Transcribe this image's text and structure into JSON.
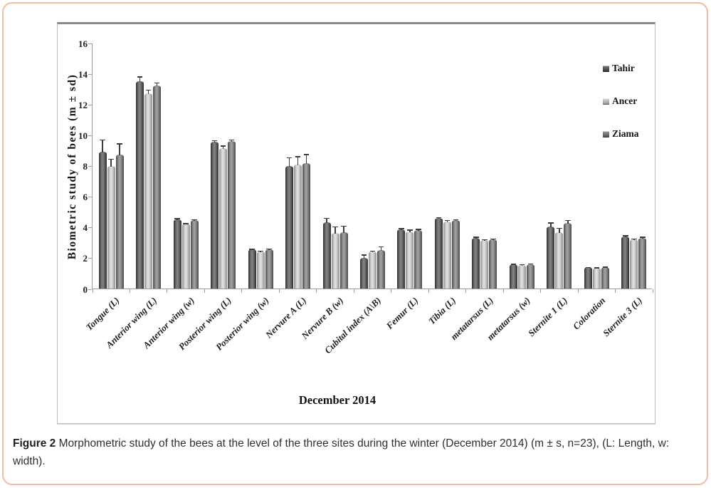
{
  "figure": {
    "caption_label": "Figure 2",
    "caption_text": " Morphometric study of the bees at the level of the three sites during the winter (December 2014) (m ± s, n=23), (L: Length, w: width).",
    "frame_border_color": "#f3bba3"
  },
  "chart_data": {
    "type": "bar",
    "title": "",
    "xlabel": "December 2014",
    "ylabel": "Biometric study of bees (m ± sd)",
    "ylim": [
      0,
      16
    ],
    "ytick_step": 2,
    "grid": false,
    "legend_position": "top-right",
    "error_bars": true,
    "categories": [
      "Tongue (L)",
      "Anterior wing (L)",
      "Anterior wing (w)",
      "Posterior wing (L)",
      "Posterior wing (w)",
      "Nervure A (L)",
      "Nervure B (w)",
      "Cubital index (A\\B)",
      "Femur (L)",
      "Tibia (L)",
      "metatarsus (L)",
      "metatarsus (w)",
      "Sternite 1 (L)",
      "Coloration",
      "Sternite 3 (L)"
    ],
    "series": [
      {
        "name": "Tahir",
        "color_edge": "#2f2f2f",
        "color_mid": "#7e7e7e",
        "values": [
          8.9,
          13.5,
          4.5,
          9.55,
          2.55,
          8.0,
          4.3,
          2.0,
          3.85,
          4.6,
          3.3,
          1.6,
          4.05,
          1.4,
          3.4
        ],
        "errors": [
          0.85,
          0.35,
          0.12,
          0.15,
          0.08,
          0.6,
          0.35,
          0.25,
          0.12,
          0.1,
          0.12,
          0.05,
          0.3,
          0.06,
          0.12
        ]
      },
      {
        "name": "Ancer",
        "color_edge": "#8f8f8f",
        "color_mid": "#dddddd",
        "values": [
          8.0,
          12.7,
          4.2,
          9.15,
          2.4,
          8.05,
          3.6,
          2.4,
          3.7,
          4.35,
          3.15,
          1.55,
          3.65,
          1.35,
          3.2
        ],
        "errors": [
          0.5,
          0.3,
          0.1,
          0.2,
          0.12,
          0.6,
          0.5,
          0.12,
          0.18,
          0.15,
          0.1,
          0.08,
          0.35,
          0.08,
          0.1
        ]
      },
      {
        "name": "Ziama",
        "color_edge": "#4a4a4a",
        "color_mid": "#9d9d9d",
        "values": [
          8.7,
          13.2,
          4.45,
          9.6,
          2.55,
          8.15,
          3.65,
          2.5,
          3.8,
          4.45,
          3.2,
          1.6,
          4.25,
          1.4,
          3.3
        ],
        "errors": [
          0.8,
          0.25,
          0.1,
          0.15,
          0.1,
          0.65,
          0.5,
          0.3,
          0.12,
          0.1,
          0.1,
          0.08,
          0.25,
          0.08,
          0.12
        ]
      }
    ]
  }
}
